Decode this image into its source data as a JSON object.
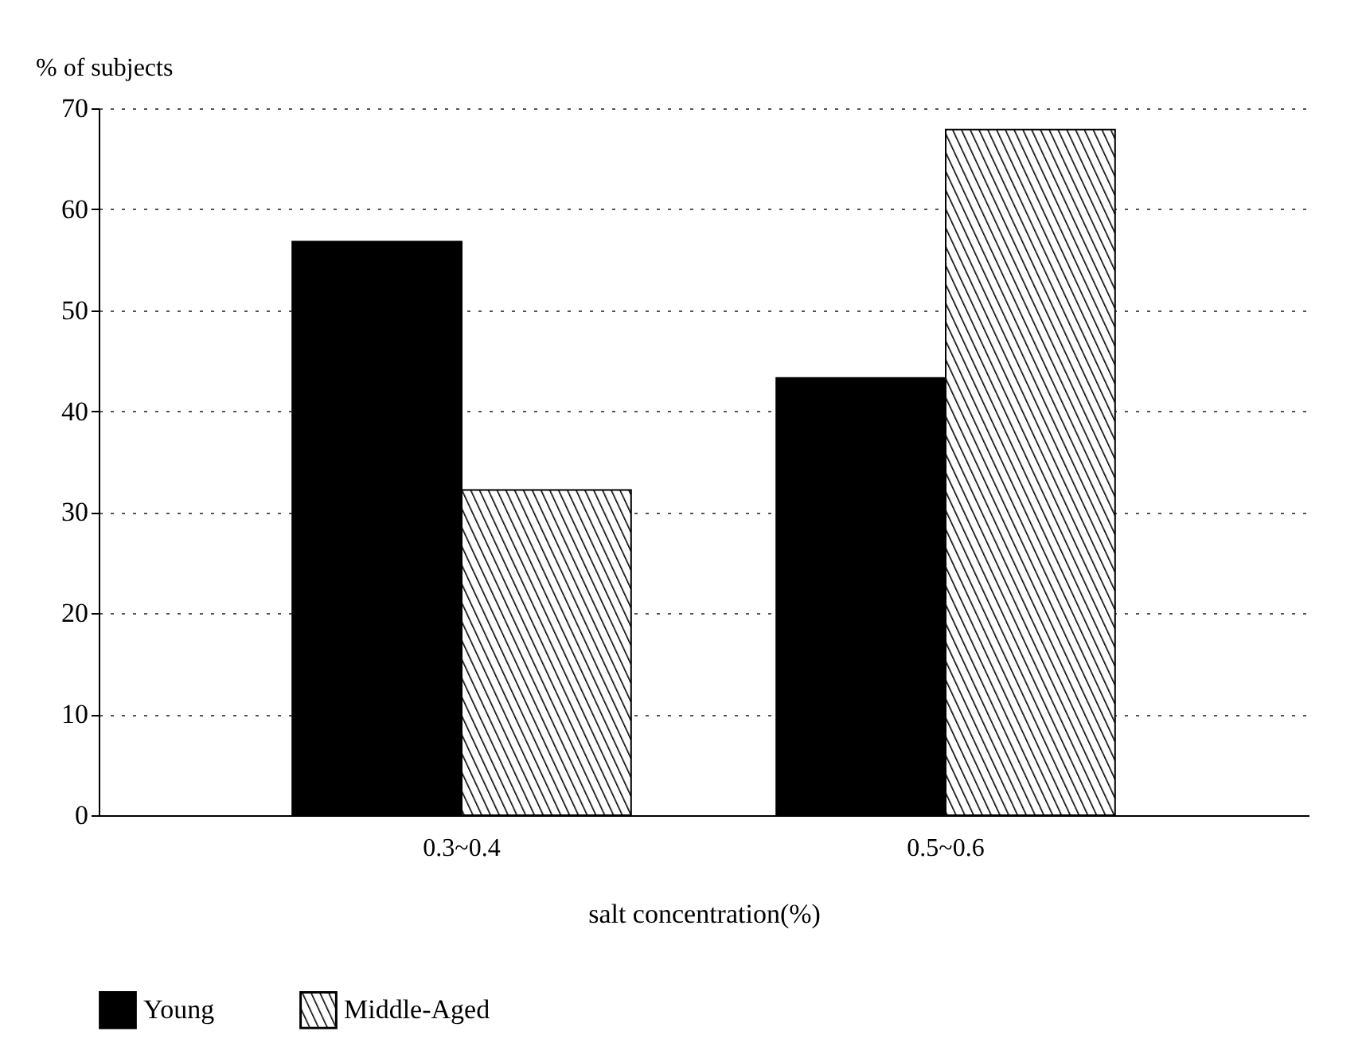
{
  "chart_data": {
    "type": "bar",
    "xlabel": "salt concentration(%)",
    "ylabel": "% of subjects",
    "categories": [
      "0.3~0.4",
      "0.5~0.6"
    ],
    "series": [
      {
        "name": "Young",
        "color": "#000000",
        "values": [
          56.8,
          43.3
        ]
      },
      {
        "name": "Middle-Aged",
        "color": "#000000",
        "values": [
          32.2,
          67.9
        ]
      }
    ],
    "ylim": [
      0,
      70
    ],
    "yticks": [
      0,
      10,
      20,
      30,
      40,
      50,
      60,
      70
    ],
    "grid": "y",
    "legend": "bottom"
  }
}
